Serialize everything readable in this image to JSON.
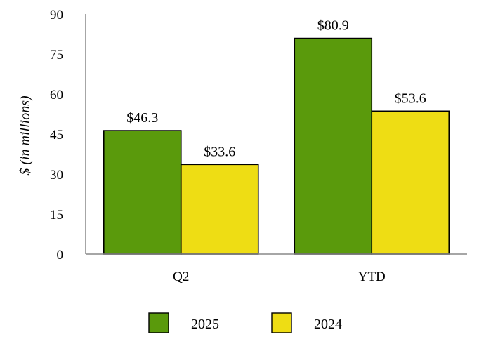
{
  "chart_data": {
    "type": "bar",
    "title": "",
    "xlabel": "",
    "ylabel": "$ (in millions)",
    "ylim": [
      0,
      90
    ],
    "yticks": [
      "0",
      "15",
      "30",
      "45",
      "60",
      "75",
      "90"
    ],
    "categories": [
      "Q2",
      "YTD"
    ],
    "series": [
      {
        "name": "2025",
        "color": "#5a9a0c",
        "values": [
          46.3,
          80.9
        ],
        "labels": [
          "$46.3",
          "$80.9"
        ]
      },
      {
        "name": "2024",
        "color": "#eedd14",
        "values": [
          33.6,
          53.6
        ],
        "labels": [
          "$33.6",
          "$53.6"
        ]
      }
    ],
    "legend_position": "bottom",
    "grid": false
  }
}
